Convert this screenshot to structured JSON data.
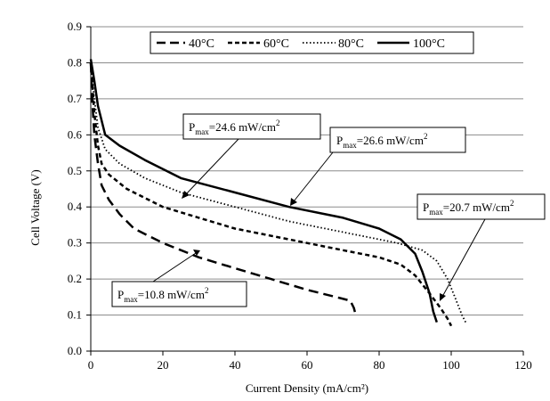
{
  "chart_data": {
    "type": "line",
    "xlabel": "Current Density (mA/cm²)",
    "ylabel": "Cell Voltage (V)",
    "xlim": [
      0,
      120
    ],
    "ylim": [
      0,
      0.9
    ],
    "xticks": [
      0,
      20,
      40,
      60,
      80,
      100,
      120
    ],
    "yticks": [
      0.0,
      0.1,
      0.2,
      0.3,
      0.4,
      0.5,
      0.6,
      0.7,
      0.8,
      0.9
    ],
    "xtick_labels": [
      "0",
      "20",
      "40",
      "60",
      "80",
      "100",
      "120"
    ],
    "ytick_labels": [
      "0.0",
      "0.1",
      "0.2",
      "0.3",
      "0.4",
      "0.5",
      "0.6",
      "0.7",
      "0.8",
      "0.9"
    ],
    "grid": "horizontal",
    "legend_position": "top",
    "series": [
      {
        "name": "40°C",
        "style": "long-dash",
        "points": [
          [
            0,
            0.8
          ],
          [
            0.5,
            0.68
          ],
          [
            1,
            0.6
          ],
          [
            2,
            0.52
          ],
          [
            3,
            0.46
          ],
          [
            5,
            0.42
          ],
          [
            8,
            0.38
          ],
          [
            12,
            0.34
          ],
          [
            20,
            0.3
          ],
          [
            30,
            0.26
          ],
          [
            40,
            0.23
          ],
          [
            50,
            0.2
          ],
          [
            60,
            0.17
          ],
          [
            68,
            0.15
          ],
          [
            72,
            0.14
          ],
          [
            73,
            0.12
          ],
          [
            73.5,
            0.1
          ]
        ]
      },
      {
        "name": "60°C",
        "style": "short-dash",
        "points": [
          [
            0,
            0.8
          ],
          [
            1,
            0.66
          ],
          [
            2,
            0.57
          ],
          [
            3,
            0.52
          ],
          [
            5,
            0.49
          ],
          [
            10,
            0.45
          ],
          [
            20,
            0.4
          ],
          [
            30,
            0.37
          ],
          [
            40,
            0.34
          ],
          [
            50,
            0.32
          ],
          [
            60,
            0.3
          ],
          [
            70,
            0.28
          ],
          [
            80,
            0.26
          ],
          [
            86,
            0.24
          ],
          [
            90,
            0.21
          ],
          [
            94,
            0.16
          ],
          [
            97,
            0.12
          ],
          [
            99,
            0.09
          ],
          [
            100,
            0.07
          ]
        ]
      },
      {
        "name": "80°C",
        "style": "dotted",
        "points": [
          [
            0,
            0.8
          ],
          [
            1,
            0.7
          ],
          [
            2,
            0.62
          ],
          [
            4,
            0.56
          ],
          [
            8,
            0.52
          ],
          [
            15,
            0.48
          ],
          [
            25,
            0.44
          ],
          [
            40,
            0.4
          ],
          [
            55,
            0.36
          ],
          [
            70,
            0.33
          ],
          [
            85,
            0.3
          ],
          [
            92,
            0.28
          ],
          [
            96,
            0.25
          ],
          [
            99,
            0.2
          ],
          [
            101,
            0.15
          ],
          [
            103,
            0.1
          ],
          [
            104,
            0.08
          ]
        ]
      },
      {
        "name": "100°C",
        "style": "solid",
        "points": [
          [
            0,
            0.81
          ],
          [
            1,
            0.75
          ],
          [
            2,
            0.68
          ],
          [
            4,
            0.6
          ],
          [
            8,
            0.57
          ],
          [
            15,
            0.53
          ],
          [
            25,
            0.48
          ],
          [
            40,
            0.44
          ],
          [
            55,
            0.4
          ],
          [
            70,
            0.37
          ],
          [
            80,
            0.34
          ],
          [
            86,
            0.31
          ],
          [
            90,
            0.27
          ],
          [
            92,
            0.22
          ],
          [
            94,
            0.16
          ],
          [
            95,
            0.11
          ],
          [
            96,
            0.08
          ]
        ]
      }
    ],
    "annotations": [
      {
        "main": "P",
        "sub": "max",
        "value": "=24.6 mW/cm",
        "sup": "2"
      },
      {
        "main": "P",
        "sub": "max",
        "value": "=26.6 mW/cm",
        "sup": "2"
      },
      {
        "main": "P",
        "sub": "max",
        "value": "=20.7 mW/cm",
        "sup": "2"
      },
      {
        "main": "P",
        "sub": "max",
        "value": "=10.8 mW/cm",
        "sup": "2"
      }
    ]
  }
}
